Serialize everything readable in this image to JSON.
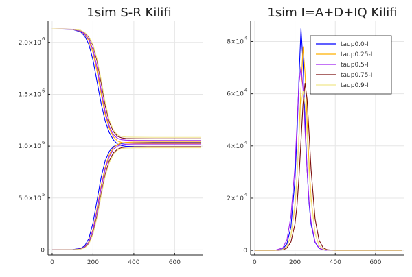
{
  "chart_data": [
    {
      "type": "line",
      "title": "1sim S-R Kilifi",
      "xlim": [
        -20,
        740
      ],
      "ylim": [
        -50000,
        2210000
      ],
      "xticks": [
        0,
        200,
        400,
        600
      ],
      "xtick_labels": [
        "0",
        "200",
        "400",
        "600"
      ],
      "yticks": [
        0,
        500000,
        1000000,
        1500000,
        2000000
      ],
      "ytick_labels": [
        {
          "base": "0",
          "exp": ""
        },
        {
          "base": "5.0×10",
          "exp": "5"
        },
        {
          "base": "1.0×10",
          "exp": "6"
        },
        {
          "base": "1.5×10",
          "exp": "6"
        },
        {
          "base": "2.0×10",
          "exp": "6"
        }
      ],
      "grid": true,
      "legend": "none",
      "x": [
        0,
        100,
        140,
        160,
        180,
        200,
        220,
        240,
        260,
        280,
        300,
        320,
        340,
        360,
        400,
        500,
        600,
        730
      ],
      "series": [
        {
          "color": "#0000ff",
          "values": [
            2130000,
            2125000,
            2100000,
            2060000,
            1980000,
            1830000,
            1620000,
            1410000,
            1240000,
            1130000,
            1060000,
            1020000,
            1005000,
            998000,
            995000,
            993000,
            993000,
            993000
          ]
        },
        {
          "color": "#ffb000",
          "values": [
            2130000,
            2126000,
            2108000,
            2075000,
            2015000,
            1900000,
            1720000,
            1500000,
            1300000,
            1170000,
            1090000,
            1050000,
            1035000,
            1030000,
            1028000,
            1027000,
            1027000,
            1027000
          ]
        },
        {
          "color": "#a020f0",
          "values": [
            2130000,
            2126000,
            2110000,
            2080000,
            2030000,
            1930000,
            1760000,
            1540000,
            1330000,
            1190000,
            1110000,
            1075000,
            1062000,
            1058000,
            1056000,
            1055000,
            1055000,
            1055000
          ]
        },
        {
          "color": "#7b0d0d",
          "values": [
            2130000,
            2127000,
            2115000,
            2092000,
            2050000,
            1970000,
            1820000,
            1610000,
            1390000,
            1230000,
            1140000,
            1095000,
            1080000,
            1074000,
            1072000,
            1071000,
            1071000,
            1071000
          ]
        },
        {
          "color": "#f0e68c",
          "values": [
            2130000,
            2127000,
            2116000,
            2095000,
            2055000,
            1980000,
            1840000,
            1640000,
            1420000,
            1250000,
            1155000,
            1108000,
            1093000,
            1088000,
            1086000,
            1085000,
            1085000,
            1085000
          ]
        },
        {
          "color": "#0000ff",
          "values": [
            0,
            3000,
            15000,
            40000,
            110000,
            260000,
            480000,
            700000,
            860000,
            950000,
            995000,
            1015000,
            1025000,
            1030000,
            1032000,
            1033000,
            1033000,
            1033000
          ]
        },
        {
          "color": "#ffb000",
          "values": [
            0,
            2000,
            10000,
            30000,
            80000,
            200000,
            400000,
            620000,
            800000,
            920000,
            985000,
            1015000,
            1030000,
            1036000,
            1040000,
            1041000,
            1041000,
            1041000
          ]
        },
        {
          "color": "#a020f0",
          "values": [
            0,
            2000,
            10000,
            28000,
            75000,
            190000,
            380000,
            600000,
            780000,
            900000,
            970000,
            1000000,
            1012000,
            1018000,
            1020000,
            1020000,
            1020000,
            1020000
          ]
        },
        {
          "color": "#7b0d0d",
          "values": [
            0,
            1500,
            8000,
            22000,
            60000,
            160000,
            330000,
            540000,
            730000,
            860000,
            935000,
            970000,
            985000,
            990000,
            993000,
            994000,
            994000,
            994000
          ]
        },
        {
          "color": "#f0e68c",
          "values": [
            0,
            1500,
            7000,
            20000,
            55000,
            150000,
            310000,
            520000,
            710000,
            840000,
            920000,
            960000,
            975000,
            980000,
            983000,
            984000,
            984000,
            984000
          ]
        }
      ]
    },
    {
      "type": "line",
      "title": "1sim I=A+D+IQ Kilifi",
      "xlim": [
        -20,
        740
      ],
      "ylim": [
        -1800,
        88000
      ],
      "xticks": [
        0,
        200,
        400,
        600
      ],
      "xtick_labels": [
        "0",
        "200",
        "400",
        "600"
      ],
      "yticks": [
        0,
        20000,
        40000,
        60000,
        80000
      ],
      "ytick_labels": [
        {
          "base": "0",
          "exp": ""
        },
        {
          "base": "2×10",
          "exp": "4"
        },
        {
          "base": "4×10",
          "exp": "4"
        },
        {
          "base": "6×10",
          "exp": "4"
        },
        {
          "base": "8×10",
          "exp": "4"
        }
      ],
      "grid": true,
      "legend": "top-right",
      "x": [
        0,
        100,
        140,
        160,
        180,
        200,
        210,
        220,
        230,
        240,
        250,
        260,
        270,
        280,
        300,
        320,
        340,
        360,
        400,
        500,
        600,
        730
      ],
      "series": [
        {
          "name": "taup0.0-I",
          "color": "#0000ff",
          "values": [
            0,
            0,
            600,
            2500,
            9000,
            27000,
            44000,
            66000,
            85000,
            72000,
            50000,
            31000,
            18000,
            10000,
            3000,
            800,
            200,
            50,
            0,
            0,
            0,
            0
          ]
        },
        {
          "name": "taup0.25-I",
          "color": "#ffb000",
          "values": [
            0,
            0,
            400,
            1500,
            5500,
            17000,
            28000,
            44000,
            62000,
            78000,
            68000,
            50000,
            33000,
            20000,
            6500,
            1800,
            500,
            120,
            0,
            0,
            0,
            0
          ]
        },
        {
          "name": "taup0.5-I",
          "color": "#a020f0",
          "values": [
            0,
            0,
            1000,
            4000,
            13000,
            32000,
            48000,
            64000,
            70500,
            62000,
            46000,
            31000,
            19000,
            11000,
            3200,
            900,
            220,
            50,
            0,
            0,
            0,
            0
          ]
        },
        {
          "name": "taup0.75-I",
          "color": "#7b0d0d",
          "values": [
            0,
            0,
            200,
            900,
            3200,
            10000,
            17000,
            28000,
            42000,
            56000,
            64000,
            58000,
            45000,
            31000,
            12000,
            3800,
            1000,
            250,
            0,
            0,
            0,
            0
          ]
        },
        {
          "name": "taup0.9-I",
          "color": "#f0e68c",
          "values": [
            0,
            0,
            400,
            1600,
            5800,
            18000,
            29000,
            43000,
            56000,
            61000,
            56000,
            44000,
            30000,
            19000,
            6500,
            1900,
            500,
            120,
            0,
            0,
            0,
            0
          ]
        }
      ]
    }
  ]
}
